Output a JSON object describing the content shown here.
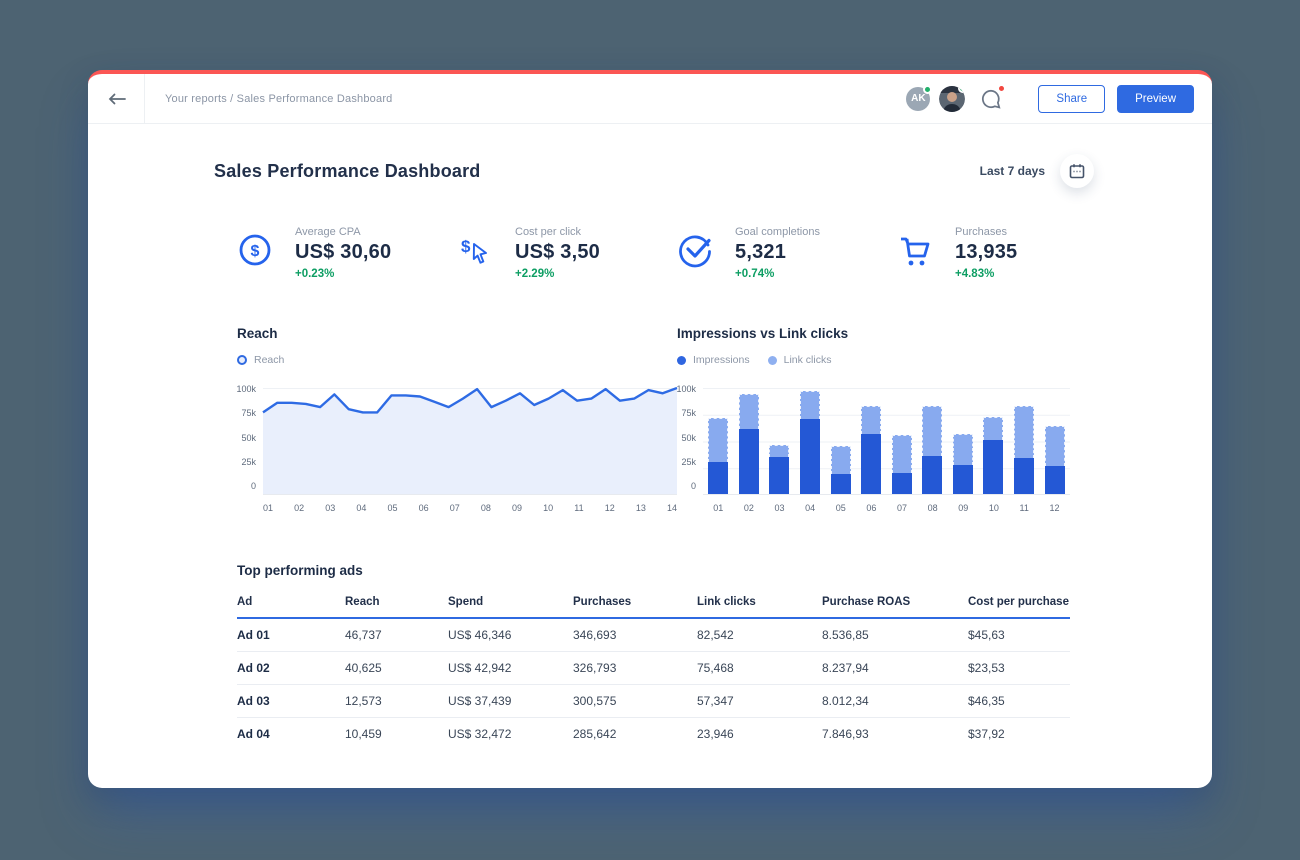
{
  "topbar": {
    "breadcrumb": "Your reports / Sales Performance Dashboard",
    "avatar_initials": "AK",
    "share_label": "Share",
    "preview_label": "Preview"
  },
  "header": {
    "title": "Sales Performance Dashboard",
    "date_range": "Last 7 days"
  },
  "kpis": [
    {
      "icon": "dollar-circle-icon",
      "label": "Average CPA",
      "value": "US$ 30,60",
      "delta": "+0.23%"
    },
    {
      "icon": "dollar-cursor-icon",
      "label": "Cost per click",
      "value": "US$ 3,50",
      "delta": "+2.29%"
    },
    {
      "icon": "check-circle-icon",
      "label": "Goal completions",
      "value": "5,321",
      "delta": "+0.74%"
    },
    {
      "icon": "cart-icon",
      "label": "Purchases",
      "value": "13,935",
      "delta": "+4.83%"
    }
  ],
  "chart_data": [
    {
      "type": "line",
      "title": "Reach",
      "legend": [
        "Reach"
      ],
      "x_labels": [
        "01",
        "02",
        "03",
        "04",
        "05",
        "06",
        "07",
        "08",
        "09",
        "10",
        "11",
        "12",
        "13",
        "14"
      ],
      "values": [
        77,
        86,
        86,
        85,
        82,
        94,
        80,
        77,
        77,
        93,
        93,
        92,
        87,
        82,
        90,
        99,
        82,
        88,
        95,
        84,
        90,
        98,
        88,
        90,
        99,
        88,
        90,
        98,
        95,
        100
      ],
      "unit": "thousands",
      "ylim": [
        0,
        100
      ],
      "y_ticks": [
        "0",
        "25k",
        "50k",
        "75k",
        "100k"
      ],
      "grid": true,
      "legend_position": "top-left",
      "line_color": "#2e6be4",
      "area_fill": "#e9effc"
    },
    {
      "type": "bar",
      "stacked": true,
      "title": "Impressions vs Link clicks",
      "legend": [
        "Impressions",
        "Link clicks"
      ],
      "categories": [
        "01",
        "02",
        "03",
        "04",
        "05",
        "06",
        "07",
        "08",
        "09",
        "10",
        "11",
        "12"
      ],
      "series": [
        {
          "name": "Impressions",
          "color": "#2458d5",
          "values": [
            30,
            61,
            35,
            71,
            19,
            57,
            20,
            36,
            27,
            51,
            34,
            26
          ]
        },
        {
          "name": "Link clicks",
          "color": "#88aaef",
          "values": [
            42,
            33,
            11,
            26,
            26,
            26,
            36,
            47,
            30,
            22,
            49,
            38
          ]
        }
      ],
      "unit": "thousands",
      "ylim": [
        0,
        100
      ],
      "y_ticks": [
        "0",
        "25k",
        "50k",
        "75k",
        "100k"
      ],
      "grid": true,
      "legend_position": "top-left"
    }
  ],
  "table": {
    "title": "Top performing ads",
    "columns": [
      "Ad",
      "Reach",
      "Spend",
      "Purchases",
      "Link clicks",
      "Purchase ROAS",
      "Cost per purchase"
    ],
    "rows": [
      [
        "Ad 01",
        "46,737",
        "US$ 46,346",
        "346,693",
        "82,542",
        "8.536,85",
        "$45,63"
      ],
      [
        "Ad 02",
        "40,625",
        "US$ 42,942",
        "326,793",
        "75,468",
        "8.237,94",
        "$23,53"
      ],
      [
        "Ad 03",
        "12,573",
        "US$ 37,439",
        "300,575",
        "57,347",
        "8.012,34",
        "$46,35"
      ],
      [
        "Ad 04",
        "10,459",
        "US$ 32,472",
        "285,642",
        "23,946",
        "7.846,93",
        "$37,92"
      ]
    ]
  },
  "colors": {
    "accent_blue": "#2f6ae1",
    "bar_dark": "#2458d5",
    "bar_light": "#88aaef",
    "line_blue": "#2e6be4",
    "area_fill": "#e9effc",
    "positive_green": "#0d9e63",
    "top_strip_red": "#fb5654",
    "background_slate": "#4d6372"
  }
}
